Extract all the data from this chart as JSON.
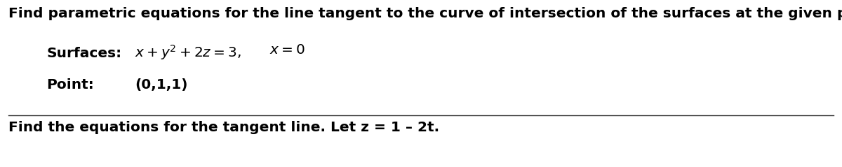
{
  "bg_color": "#ffffff",
  "text_color": "#000000",
  "title_text": "Find parametric equations for the line tangent to the curve of intersection of the surfaces at the given point.",
  "label_surfaces": "Surfaces:",
  "surface_eq": "$x + y^{2} + 2z = 3,$",
  "surface_eq2": "$x = 0$",
  "label_point": "Point:",
  "point_val": "(0,1,1)",
  "bottom_text": "Find the equations for the tangent line. Let z = 1 – 2t.",
  "figsize": [
    12.0,
    2.39
  ],
  "dpi": 100,
  "fontsize": 14.5,
  "fontweight": "bold"
}
